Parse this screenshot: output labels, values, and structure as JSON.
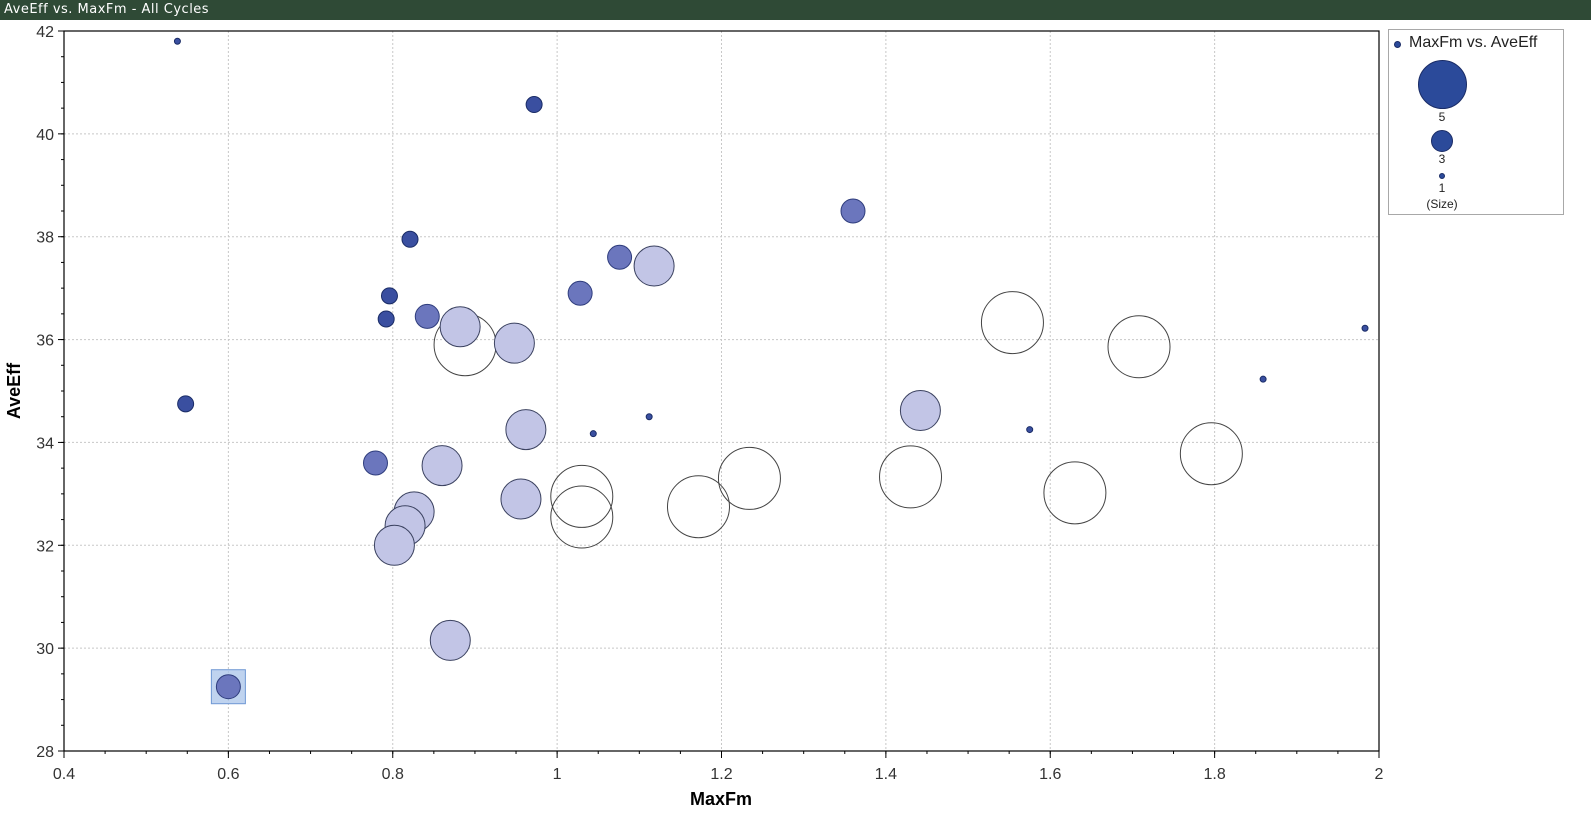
{
  "window": {
    "title": "AveEff vs. MaxFm - All Cycles"
  },
  "legend": {
    "series_name": "MaxFm vs. AveEff",
    "size_labels": [
      "5",
      "3",
      "1"
    ],
    "size_caption": "(Size)"
  },
  "colors": {
    "titlebar": "#2f4a36",
    "bubble_dark": "#2b4a9a",
    "grid": "#c8c8c8"
  },
  "chart_data": {
    "type": "scatter",
    "subtype": "bubble",
    "title": "",
    "xlabel": "MaxFm",
    "ylabel": "AveEff",
    "xlim": [
      0.4,
      2.0
    ],
    "ylim": [
      28,
      42
    ],
    "x_ticks": [
      "0.4",
      "0.6",
      "0.8",
      "1",
      "1.2",
      "1.4",
      "1.6",
      "1.8",
      "2"
    ],
    "y_ticks": [
      "28",
      "30",
      "32",
      "34",
      "36",
      "38",
      "40",
      "42"
    ],
    "grid": true,
    "legend_position": "right",
    "size_legend": [
      5,
      3,
      1
    ],
    "series": [
      {
        "name": "MaxFm vs. AveEff",
        "points": [
          {
            "x": 0.538,
            "y": 41.8,
            "size": 1,
            "shade": 0
          },
          {
            "x": 0.972,
            "y": 40.57,
            "size": 2,
            "shade": 0
          },
          {
            "x": 0.548,
            "y": 34.75,
            "size": 2,
            "shade": 0
          },
          {
            "x": 0.821,
            "y": 37.95,
            "size": 2,
            "shade": 0
          },
          {
            "x": 0.796,
            "y": 36.85,
            "size": 2,
            "shade": 0
          },
          {
            "x": 0.792,
            "y": 36.4,
            "size": 2,
            "shade": 0
          },
          {
            "x": 0.779,
            "y": 33.6,
            "size": 3,
            "shade": 1
          },
          {
            "x": 0.842,
            "y": 36.45,
            "size": 3,
            "shade": 1
          },
          {
            "x": 1.076,
            "y": 37.6,
            "size": 3,
            "shade": 1
          },
          {
            "x": 1.028,
            "y": 36.9,
            "size": 3,
            "shade": 1
          },
          {
            "x": 1.36,
            "y": 38.5,
            "size": 3,
            "shade": 1
          },
          {
            "x": 0.6,
            "y": 29.25,
            "size": 3,
            "shade": 1,
            "selected": true
          },
          {
            "x": 1.118,
            "y": 37.43,
            "size": 4,
            "shade": 2
          },
          {
            "x": 0.882,
            "y": 36.25,
            "size": 4,
            "shade": 2
          },
          {
            "x": 0.948,
            "y": 35.93,
            "size": 4,
            "shade": 2
          },
          {
            "x": 0.962,
            "y": 34.25,
            "size": 4,
            "shade": 2
          },
          {
            "x": 0.86,
            "y": 33.55,
            "size": 4,
            "shade": 2
          },
          {
            "x": 0.956,
            "y": 32.9,
            "size": 4,
            "shade": 2
          },
          {
            "x": 0.826,
            "y": 32.65,
            "size": 4,
            "shade": 2
          },
          {
            "x": 0.815,
            "y": 32.38,
            "size": 4,
            "shade": 2
          },
          {
            "x": 0.802,
            "y": 32.0,
            "size": 4,
            "shade": 2
          },
          {
            "x": 0.87,
            "y": 30.15,
            "size": 4,
            "shade": 2
          },
          {
            "x": 1.442,
            "y": 34.62,
            "size": 4,
            "shade": 2
          },
          {
            "x": 0.888,
            "y": 35.9,
            "size": 5,
            "shade": 3
          },
          {
            "x": 1.03,
            "y": 32.95,
            "size": 5,
            "shade": 3
          },
          {
            "x": 1.03,
            "y": 32.55,
            "size": 5,
            "shade": 3
          },
          {
            "x": 1.172,
            "y": 32.75,
            "size": 5,
            "shade": 3
          },
          {
            "x": 1.234,
            "y": 33.3,
            "size": 5,
            "shade": 3
          },
          {
            "x": 1.43,
            "y": 33.33,
            "size": 5,
            "shade": 3
          },
          {
            "x": 1.554,
            "y": 36.33,
            "size": 5,
            "shade": 3
          },
          {
            "x": 1.63,
            "y": 33.02,
            "size": 5,
            "shade": 3
          },
          {
            "x": 1.708,
            "y": 35.86,
            "size": 5,
            "shade": 3
          },
          {
            "x": 1.796,
            "y": 33.78,
            "size": 5,
            "shade": 3
          },
          {
            "x": 1.044,
            "y": 34.17,
            "size": 1,
            "shade": 0
          },
          {
            "x": 1.112,
            "y": 34.5,
            "size": 1,
            "shade": 0
          },
          {
            "x": 1.575,
            "y": 34.25,
            "size": 1,
            "shade": 0
          },
          {
            "x": 1.859,
            "y": 35.23,
            "size": 1,
            "shade": 0
          },
          {
            "x": 1.983,
            "y": 36.22,
            "size": 1,
            "shade": 0
          }
        ]
      }
    ]
  }
}
